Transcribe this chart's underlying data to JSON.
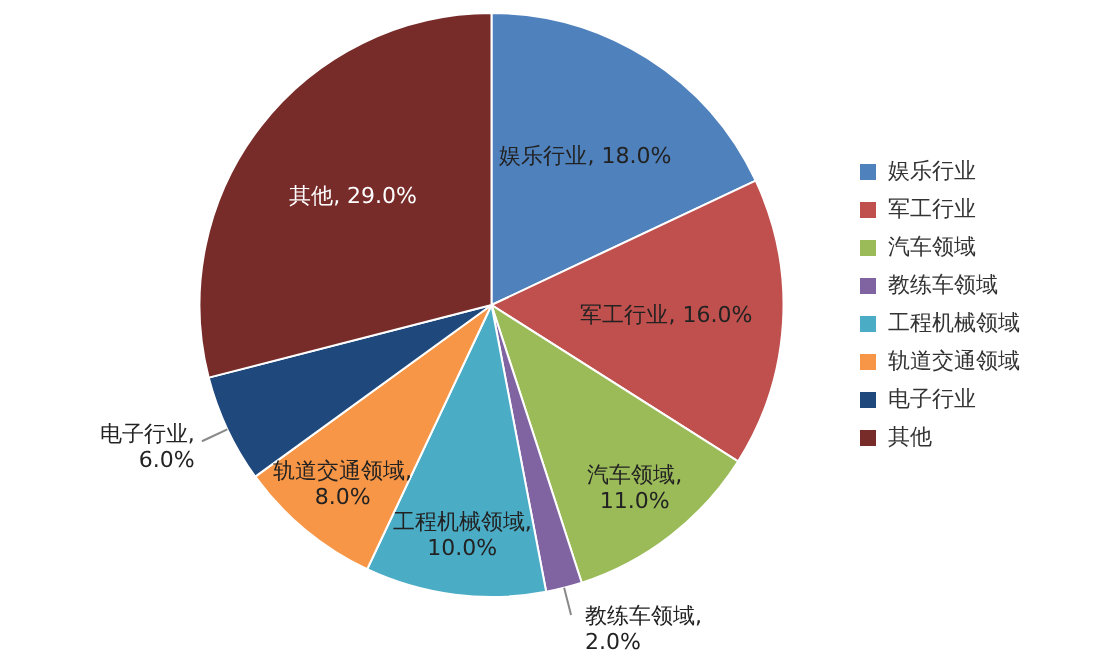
{
  "chart_data": {
    "type": "pie",
    "categories": [
      "娱乐行业",
      "军工行业",
      "汽车领域",
      "教练车领域",
      "工程机械领域",
      "轨道交通领域",
      "电子行业",
      "其他"
    ],
    "values": [
      18.0,
      16.0,
      11.0,
      2.0,
      10.0,
      8.0,
      6.0,
      29.0
    ],
    "value_labels": [
      "娱乐行业, 18.0%",
      "军工行业, 16.0%",
      "汽车领域, 11.0%",
      "教练车领域, 2.0%",
      "工程机械领域, 10.0%",
      "轨道交通领域, 8.0%",
      "电子行业, 6.0%",
      "其他, 29.0%"
    ],
    "colors": [
      "#4f81bd",
      "#c0504d",
      "#9bbb59",
      "#8064a2",
      "#4bacc6",
      "#f79646",
      "#1f497d",
      "#772c2a"
    ],
    "legend": "right"
  }
}
